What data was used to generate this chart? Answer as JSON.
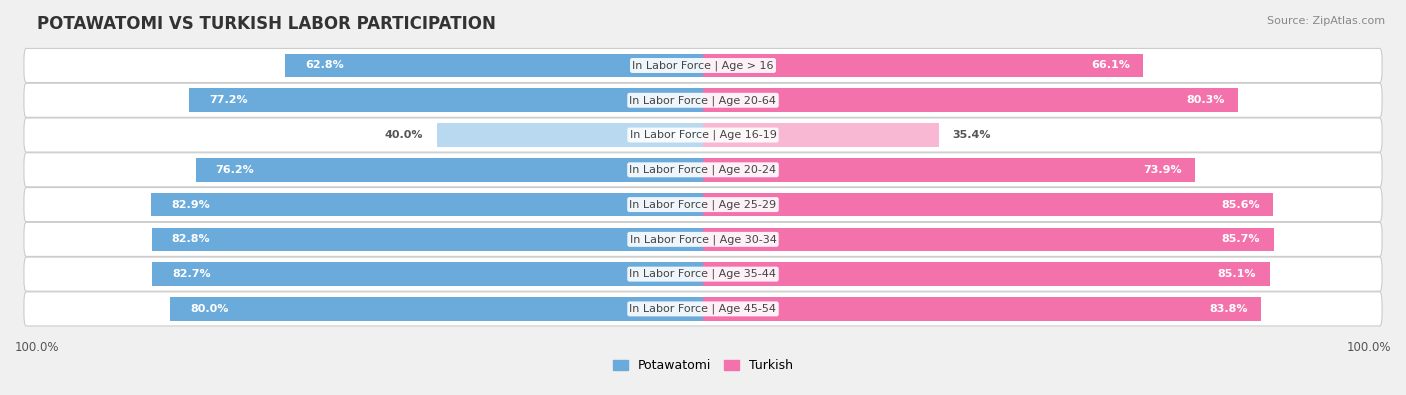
{
  "title": "POTAWATOMI VS TURKISH LABOR PARTICIPATION",
  "source": "Source: ZipAtlas.com",
  "categories": [
    "In Labor Force | Age > 16",
    "In Labor Force | Age 20-64",
    "In Labor Force | Age 16-19",
    "In Labor Force | Age 20-24",
    "In Labor Force | Age 25-29",
    "In Labor Force | Age 30-34",
    "In Labor Force | Age 35-44",
    "In Labor Force | Age 45-54"
  ],
  "potawatomi_values": [
    62.8,
    77.2,
    40.0,
    76.2,
    82.9,
    82.8,
    82.7,
    80.0
  ],
  "turkish_values": [
    66.1,
    80.3,
    35.4,
    73.9,
    85.6,
    85.7,
    85.1,
    83.8
  ],
  "potawatomi_color": "#6aabdb",
  "potawatomi_color_light": "#b8d9f0",
  "turkish_color": "#f472ab",
  "turkish_color_light": "#f8b8d4",
  "bar_height": 0.68,
  "xlim": [
    -100,
    100
  ],
  "x_axis_value": "100.0%",
  "title_fontsize": 12,
  "label_fontsize": 8,
  "value_fontsize": 8,
  "legend_fontsize": 9,
  "bg_color": "#f0f0f0",
  "row_bg_color": "#ffffff",
  "row_border_color": "#cccccc"
}
